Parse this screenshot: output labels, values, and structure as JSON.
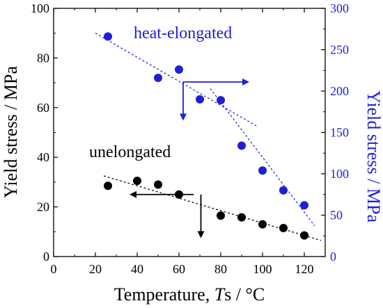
{
  "colors": {
    "left_axis": "#000000",
    "right_axis": "#1f1fd6",
    "unelongated": "#000000",
    "heat_elongated": "#1f1fd6"
  },
  "chart_data": {
    "type": "scatter",
    "title": "",
    "xlabel": {
      "prefix": "Temperature, ",
      "italic": "T",
      "suffix": "s / °C"
    },
    "ylabel_left": "Yield stress / MPa",
    "ylabel_right": "Yield stress / MPa",
    "xlim": [
      0,
      130
    ],
    "ylim_left": [
      0,
      100
    ],
    "ylim_right": [
      0,
      300
    ],
    "xticks": [
      0,
      20,
      40,
      60,
      80,
      100,
      120
    ],
    "yticks_left": [
      0,
      20,
      40,
      60,
      80,
      100
    ],
    "yticks_right": [
      0,
      50,
      100,
      150,
      200,
      250,
      300
    ],
    "grid": false,
    "series": [
      {
        "name": "unelongated",
        "axis": "left",
        "color": "#000000",
        "x": [
          26,
          40,
          50,
          60,
          80,
          90,
          100,
          110,
          120
        ],
        "y": [
          28.5,
          30.5,
          29,
          25,
          16.5,
          15.8,
          13,
          11.5,
          8.5
        ],
        "trend": {
          "x": [
            24,
            128
          ],
          "y": [
            32.5,
            6.5
          ]
        }
      },
      {
        "name": "heat-elongated",
        "axis": "right",
        "color": "#1f1fd6",
        "x": [
          26,
          50,
          60,
          70,
          80,
          90,
          100,
          110,
          120
        ],
        "y": [
          266,
          216,
          226,
          190,
          189,
          134,
          104,
          80,
          62
        ],
        "trends": [
          {
            "x": [
              20,
              97
            ],
            "y": [
              270,
              158
            ]
          },
          {
            "x": [
              75,
              125
            ],
            "y": [
              203,
              37
            ]
          }
        ]
      }
    ],
    "annotations": {
      "unelongated_label": "unelongated",
      "heat_label": "heat-elongated"
    },
    "arrows": {
      "black": {
        "origin": [
          67,
          25
        ],
        "left_to_x": 37,
        "down_to_y": 8
      },
      "blue": {
        "origin": [
          62,
          211
        ],
        "right_to_x": 93,
        "down_to_y": 166
      }
    }
  }
}
